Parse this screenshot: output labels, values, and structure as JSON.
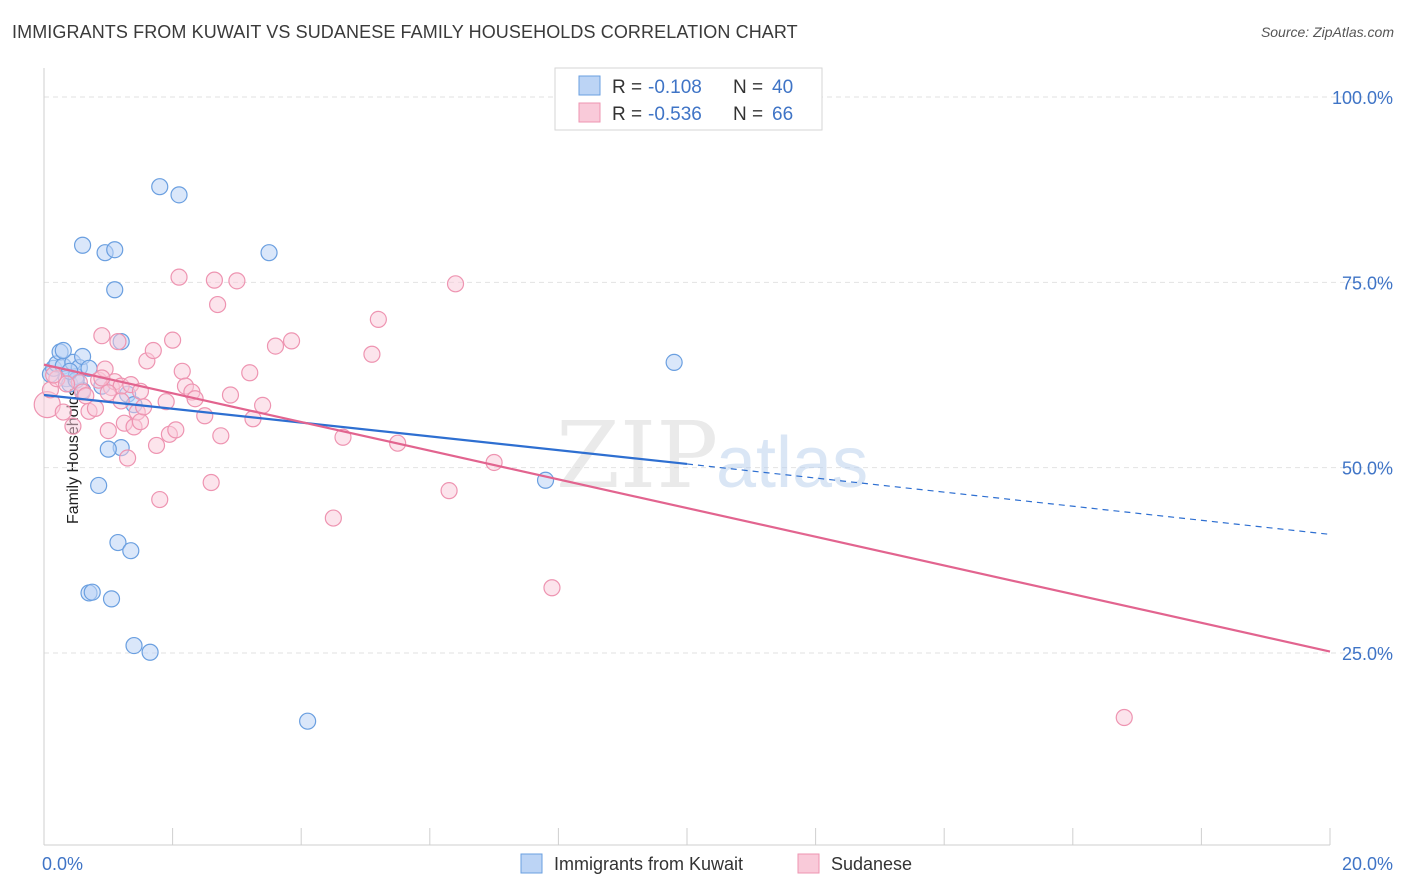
{
  "title": "IMMIGRANTS FROM KUWAIT VS SUDANESE FAMILY HOUSEHOLDS CORRELATION CHART",
  "source": "Source: ZipAtlas.com",
  "watermark": {
    "zip": "ZIP",
    "atlas": "atlas"
  },
  "chart_data": {
    "type": "scatter",
    "ylabel": "Family Households",
    "xlim": [
      0,
      20
    ],
    "ylim": [
      3,
      104
    ],
    "x_tick_labels": [
      "0.0%",
      "20.0%"
    ],
    "y_ticks": [
      25,
      50,
      75,
      100
    ],
    "y_tick_labels": [
      "25.0%",
      "50.0%",
      "75.0%",
      "100.0%"
    ],
    "grid": true,
    "legend_position": "top-center",
    "colors": {
      "kuwait": "#6a9fe0",
      "kuwait_line": "#2e6fd1",
      "sudanese": "#ee94b1",
      "sudanese_line": "#e2648f",
      "tick_text": "#3f74c6"
    },
    "series": [
      {
        "name": "Immigrants from Kuwait",
        "r": "-0.108",
        "n": "40",
        "trend": {
          "x0": 0,
          "y0": 59.8,
          "x1": 10,
          "y1": 50.5,
          "dash_x1": 20,
          "dash_y1": 41.0
        },
        "points": [
          [
            0.1,
            62.6
          ],
          [
            0.15,
            63.4
          ],
          [
            0.2,
            64.0
          ],
          [
            0.25,
            65.6
          ],
          [
            0.3,
            63.7
          ],
          [
            0.35,
            62.0
          ],
          [
            0.4,
            61.3
          ],
          [
            0.45,
            64.2
          ],
          [
            0.5,
            62.3
          ],
          [
            0.55,
            63.5
          ],
          [
            0.6,
            60.4
          ],
          [
            0.6,
            65.0
          ],
          [
            0.7,
            63.4
          ],
          [
            0.6,
            80.0
          ],
          [
            0.95,
            79.0
          ],
          [
            1.1,
            79.4
          ],
          [
            1.1,
            74.0
          ],
          [
            1.2,
            67.0
          ],
          [
            0.9,
            61.0
          ],
          [
            1.3,
            59.9
          ],
          [
            1.4,
            58.5
          ],
          [
            1.2,
            52.7
          ],
          [
            1.0,
            52.5
          ],
          [
            0.85,
            47.6
          ],
          [
            1.15,
            39.9
          ],
          [
            1.35,
            38.8
          ],
          [
            0.7,
            33.1
          ],
          [
            0.75,
            33.2
          ],
          [
            1.05,
            32.3
          ],
          [
            1.4,
            26.0
          ],
          [
            1.65,
            25.1
          ],
          [
            1.8,
            87.9
          ],
          [
            2.1,
            86.8
          ],
          [
            3.5,
            79.0
          ],
          [
            4.1,
            15.8
          ],
          [
            9.8,
            64.2
          ],
          [
            7.8,
            48.3
          ],
          [
            0.3,
            65.8
          ],
          [
            0.5,
            61.8
          ],
          [
            0.4,
            63.0
          ]
        ]
      },
      {
        "name": "Sudanese",
        "r": "-0.536",
        "n": "66",
        "trend": {
          "x0": 0,
          "y0": 63.9,
          "x1": 20,
          "y1": 25.2
        },
        "points": [
          [
            0.05,
            58.5
          ],
          [
            0.1,
            60.5
          ],
          [
            0.2,
            62.0
          ],
          [
            0.3,
            57.5
          ],
          [
            0.45,
            55.6
          ],
          [
            0.55,
            61.5
          ],
          [
            0.6,
            60.2
          ],
          [
            0.7,
            57.6
          ],
          [
            0.8,
            58.0
          ],
          [
            0.85,
            61.8
          ],
          [
            0.9,
            67.8
          ],
          [
            0.95,
            63.3
          ],
          [
            1.0,
            55.0
          ],
          [
            1.05,
            60.8
          ],
          [
            1.1,
            61.6
          ],
          [
            1.15,
            67.0
          ],
          [
            1.2,
            61.0
          ],
          [
            1.25,
            56.0
          ],
          [
            1.3,
            51.3
          ],
          [
            1.35,
            61.2
          ],
          [
            1.4,
            55.5
          ],
          [
            1.45,
            57.5
          ],
          [
            1.5,
            56.2
          ],
          [
            1.55,
            58.2
          ],
          [
            1.6,
            64.4
          ],
          [
            1.7,
            65.8
          ],
          [
            1.75,
            53.0
          ],
          [
            1.8,
            45.7
          ],
          [
            1.9,
            58.9
          ],
          [
            1.95,
            54.5
          ],
          [
            2.0,
            67.2
          ],
          [
            2.05,
            55.1
          ],
          [
            2.1,
            75.7
          ],
          [
            2.15,
            63.0
          ],
          [
            2.2,
            61.0
          ],
          [
            2.3,
            60.2
          ],
          [
            2.35,
            59.3
          ],
          [
            2.5,
            57.0
          ],
          [
            2.6,
            48.0
          ],
          [
            2.65,
            75.3
          ],
          [
            2.7,
            72.0
          ],
          [
            2.75,
            54.3
          ],
          [
            2.9,
            59.8
          ],
          [
            3.0,
            75.2
          ],
          [
            3.2,
            62.8
          ],
          [
            3.25,
            56.6
          ],
          [
            3.4,
            58.4
          ],
          [
            3.6,
            66.4
          ],
          [
            3.85,
            67.1
          ],
          [
            4.5,
            43.2
          ],
          [
            4.65,
            54.1
          ],
          [
            5.1,
            65.3
          ],
          [
            5.2,
            70.0
          ],
          [
            5.5,
            53.3
          ],
          [
            6.3,
            46.9
          ],
          [
            6.4,
            74.8
          ],
          [
            7.0,
            50.7
          ],
          [
            7.9,
            33.8
          ],
          [
            16.8,
            16.3
          ],
          [
            0.35,
            61.3
          ],
          [
            0.65,
            59.7
          ],
          [
            1.0,
            60.1
          ],
          [
            1.5,
            60.3
          ],
          [
            0.9,
            62.1
          ],
          [
            0.15,
            62.5
          ],
          [
            1.2,
            59.0
          ]
        ]
      }
    ]
  }
}
